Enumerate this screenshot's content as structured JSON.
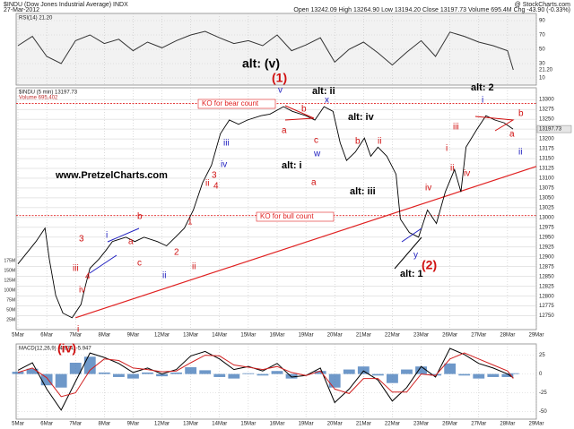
{
  "header": {
    "symbol": "$INDU (Dow Jones Industrial Average) INDX",
    "source": "@ StockCharts.com",
    "date": "27-Mar-2012",
    "quote": "Open 13242.09  High 13264.90  Low 13194.20  Close 13197.73  Volume 695.4M  Chg -43.90 (-0.33%)"
  },
  "chart_data": [
    {
      "type": "line",
      "legend": "RSI(14) 21.20",
      "value_label": "21.20",
      "color": "#333333",
      "xlim": [
        0,
        18
      ],
      "ylim": [
        0,
        100
      ],
      "yticks": [
        10,
        30,
        50,
        70,
        90
      ],
      "x": [
        0,
        0.5,
        1,
        1.5,
        2,
        2.5,
        3,
        3.5,
        4,
        4.5,
        5,
        5.5,
        6,
        6.5,
        7,
        7.5,
        8,
        8.5,
        9,
        9.5,
        10,
        10.5,
        11,
        11.5,
        12,
        12.5,
        13,
        13.5,
        14,
        14.5,
        15,
        15.5,
        16,
        16.5,
        17,
        17.2
      ],
      "values": [
        55,
        68,
        40,
        30,
        62,
        70,
        58,
        64,
        48,
        60,
        52,
        62,
        70,
        75,
        66,
        58,
        62,
        55,
        70,
        48,
        56,
        66,
        32,
        50,
        60,
        45,
        28,
        46,
        62,
        40,
        74,
        68,
        60,
        55,
        48,
        21.2
      ]
    },
    {
      "type": "line",
      "legend": "$INDU (5 min) 13197.73",
      "volume_legend": "Volume 695,402",
      "last_label": "13197.73",
      "color": "#000000",
      "xlim": [
        0,
        18
      ],
      "xticks": [
        {
          "value": 0,
          "label": "5Mar"
        },
        {
          "value": 1,
          "label": "6Mar"
        },
        {
          "value": 2,
          "label": "7Mar"
        },
        {
          "value": 3,
          "label": "8Mar"
        },
        {
          "value": 4,
          "label": "9Mar"
        },
        {
          "value": 5,
          "label": "12Mar"
        },
        {
          "value": 6,
          "label": "13Mar"
        },
        {
          "value": 7,
          "label": "14Mar"
        },
        {
          "value": 8,
          "label": "15Mar"
        },
        {
          "value": 9,
          "label": "16Mar"
        },
        {
          "value": 10,
          "label": "19Mar"
        },
        {
          "value": 11,
          "label": "20Mar"
        },
        {
          "value": 12,
          "label": "21Mar"
        },
        {
          "value": 13,
          "label": "22Mar"
        },
        {
          "value": 14,
          "label": "23Mar"
        },
        {
          "value": 15,
          "label": "26Mar"
        },
        {
          "value": 16,
          "label": "27Mar"
        },
        {
          "value": 17,
          "label": "28Mar"
        },
        {
          "value": 18,
          "label": "29Mar"
        }
      ],
      "ylim": [
        12715,
        13330
      ],
      "yticks": [
        12750,
        12775,
        12800,
        12825,
        12850,
        12875,
        12900,
        12925,
        12950,
        12975,
        13000,
        13025,
        13050,
        13075,
        13100,
        13125,
        13150,
        13175,
        13200,
        13225,
        13250,
        13275,
        13300
      ],
      "y2lim": [
        0,
        614000000
      ],
      "y2ticks": [
        {
          "value": 25000000,
          "label": "25M"
        },
        {
          "value": 50000000,
          "label": "50M"
        },
        {
          "value": 75000000,
          "label": "75M"
        },
        {
          "value": 100000000,
          "label": "100M"
        },
        {
          "value": 125000000,
          "label": "125M"
        },
        {
          "value": 150000000,
          "label": "150M"
        },
        {
          "value": 175000000,
          "label": "175M"
        }
      ],
      "series": [
        {
          "name": "$INDU",
          "color": "#000000",
          "x": [
            0,
            0.625,
            0.94,
            1.09,
            1.31,
            1.56,
            1.88,
            2.19,
            2.34,
            2.5,
            2.81,
            3.06,
            3.28,
            3.75,
            4.06,
            4.38,
            4.84,
            5.16,
            5.47,
            5.78,
            6.09,
            6.41,
            6.72,
            7.03,
            7.34,
            7.66,
            7.97,
            8.44,
            8.75,
            9.22,
            9.53,
            10,
            10.31,
            10.63,
            10.94,
            11.19,
            11.41,
            11.72,
            12.03,
            12.25,
            12.5,
            12.81,
            13.13,
            13.28,
            13.59,
            13.91,
            14.22,
            14.53,
            14.84,
            15.16,
            15.38,
            15.56,
            15.94,
            16.25,
            16.56,
            16.88,
            17.19
          ],
          "values": [
            12882,
            12939,
            12973,
            12894,
            12802,
            12757,
            12745,
            12779,
            12825,
            12871,
            12894,
            12917,
            12939,
            12950,
            12939,
            12950,
            12939,
            12928,
            12950,
            12973,
            13019,
            13088,
            13133,
            13213,
            13248,
            13237,
            13248,
            13259,
            13263,
            13282,
            13270,
            13259,
            13248,
            13282,
            13270,
            13190,
            13145,
            13167,
            13202,
            13156,
            13179,
            13156,
            13110,
            12996,
            12962,
            12950,
            13019,
            12985,
            13065,
            13122,
            13065,
            13179,
            13225,
            13259,
            13248,
            13241,
            13225
          ]
        }
      ],
      "levels": [
        {
          "label": "KO for bear count",
          "value": 13290,
          "color": "#e02020"
        },
        {
          "label": "KO for bull count",
          "value": 13005,
          "color": "#e02020"
        }
      ],
      "trendline": {
        "x": [
          2,
          18
        ],
        "y": [
          12745,
          13130
        ],
        "color": "#e02020"
      },
      "annotations": [
        {
          "text": "alt: (v)",
          "color": "#000000"
        },
        {
          "text": "(1)",
          "color": "#d01010"
        },
        {
          "text": "v",
          "color": "#2020c0"
        },
        {
          "text": "b",
          "color": "#d01010"
        },
        {
          "text": "x",
          "color": "#2020c0"
        },
        {
          "text": "alt: ii",
          "color": "#000000"
        },
        {
          "text": "a",
          "color": "#d01010"
        },
        {
          "text": "c",
          "color": "#d01010"
        },
        {
          "text": "w",
          "color": "#2020c0"
        },
        {
          "text": "iii",
          "color": "#2020c0"
        },
        {
          "text": "iv",
          "color": "#2020c0"
        },
        {
          "text": "alt: iv",
          "color": "#000000"
        },
        {
          "text": "b",
          "color": "#d01010"
        },
        {
          "text": "ii",
          "color": "#d01010"
        },
        {
          "text": "alt: i",
          "color": "#000000"
        },
        {
          "text": "a",
          "color": "#d01010"
        },
        {
          "text": "alt: iii",
          "color": "#000000"
        },
        {
          "text": "www.PretzelCharts.com",
          "color": "#000000"
        },
        {
          "text": "3",
          "color": "#d01010"
        },
        {
          "text": "ii",
          "color": "#d01010"
        },
        {
          "text": "4",
          "color": "#d01010"
        },
        {
          "text": "1",
          "color": "#d01010"
        },
        {
          "text": "ii",
          "color": "#d01010"
        },
        {
          "text": "b",
          "color": "#d01010"
        },
        {
          "text": "3",
          "color": "#d01010"
        },
        {
          "text": "i",
          "color": "#2020c0"
        },
        {
          "text": "iii",
          "color": "#d01010"
        },
        {
          "text": "4",
          "color": "#d01010"
        },
        {
          "text": "iv",
          "color": "#d01010"
        },
        {
          "text": "c",
          "color": "#d01010"
        },
        {
          "text": "2",
          "color": "#d01010"
        },
        {
          "text": "ii",
          "color": "#2020c0"
        },
        {
          "text": "a",
          "color": "#d01010"
        },
        {
          "text": "alt: 1",
          "color": "#000000"
        },
        {
          "text": "(2)",
          "color": "#d01010"
        },
        {
          "text": "y",
          "color": "#2020c0"
        },
        {
          "text": "iv",
          "color": "#d01010"
        },
        {
          "text": "i",
          "color": "#d01010"
        },
        {
          "text": "iii",
          "color": "#d01010"
        },
        {
          "text": "iv",
          "color": "#d01010"
        },
        {
          "text": "ii",
          "color": "#d01010"
        },
        {
          "text": "alt: 2",
          "color": "#000000"
        },
        {
          "text": "i",
          "color": "#2020c0"
        },
        {
          "text": "b",
          "color": "#d01010"
        },
        {
          "text": "a",
          "color": "#d01010"
        },
        {
          "text": "ii",
          "color": "#2020c0"
        },
        {
          "text": "(iv)",
          "color": "#d01010"
        },
        {
          "text": "i",
          "color": "#d01010"
        }
      ]
    },
    {
      "type": "line",
      "legend": "MACD(12,26,9) -4.974, -5.947",
      "xlim": [
        0,
        18
      ],
      "ylim": [
        -60,
        40
      ],
      "yticks": [
        -50,
        -25,
        0,
        25
      ],
      "x": [
        0,
        0.5,
        1,
        1.5,
        2,
        2.5,
        3,
        3.5,
        4,
        4.5,
        5,
        5.5,
        6,
        6.5,
        7,
        7.5,
        8,
        8.5,
        9,
        9.5,
        10,
        10.5,
        11,
        11.5,
        12,
        12.5,
        13,
        13.5,
        14,
        14.5,
        15,
        15.5,
        16,
        16.5,
        17,
        17.2
      ],
      "series": [
        {
          "name": "MACD",
          "color": "#000000",
          "values": [
            5,
            15,
            -20,
            -48,
            -10,
            28,
            22,
            14,
            2,
            8,
            0,
            6,
            24,
            30,
            20,
            6,
            10,
            4,
            14,
            -4,
            -2,
            8,
            -38,
            -20,
            4,
            -8,
            -36,
            -18,
            10,
            -4,
            34,
            26,
            14,
            8,
            0,
            -4.974
          ]
        },
        {
          "name": "Signal",
          "color": "#d02020",
          "values": [
            2,
            8,
            -5,
            -30,
            -25,
            5,
            20,
            18,
            8,
            6,
            3,
            4,
            15,
            25,
            24,
            12,
            9,
            6,
            10,
            2,
            -2,
            4,
            -20,
            -26,
            -6,
            -6,
            -24,
            -24,
            0,
            -2,
            20,
            28,
            20,
            12,
            4,
            -5.947
          ]
        },
        {
          "name": "Histogram",
          "color": "#4a7ebb",
          "values": [
            3,
            7,
            -15,
            -18,
            15,
            23,
            2,
            -4,
            -6,
            2,
            -3,
            2,
            9,
            5,
            -4,
            -6,
            1,
            -2,
            4,
            -6,
            0,
            4,
            -18,
            6,
            10,
            -2,
            -12,
            6,
            10,
            -2,
            14,
            -2,
            -6,
            -4,
            -4,
            1
          ]
        }
      ]
    }
  ]
}
